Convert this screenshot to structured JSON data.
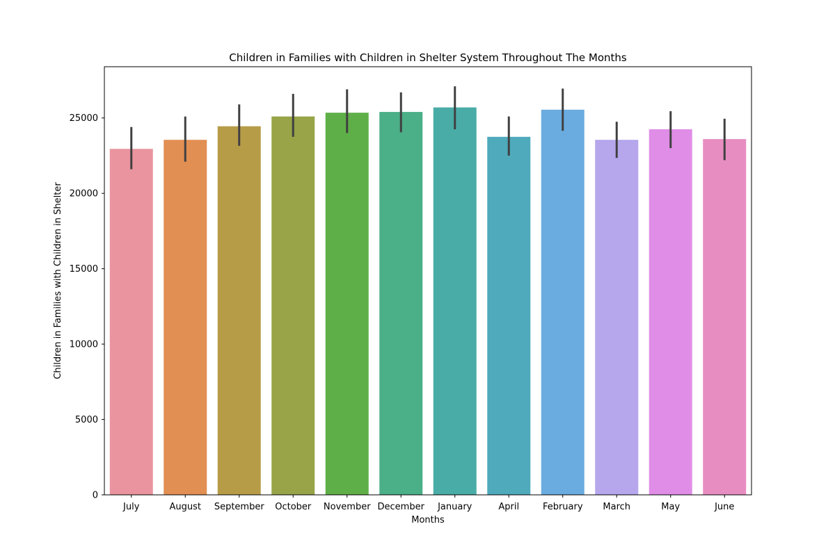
{
  "chart_data": {
    "type": "bar",
    "title": "Children in Families with Children in Shelter System Throughout The Months",
    "xlabel": "Months",
    "ylabel": "Children in Families with Children in Shelter",
    "categories": [
      "July",
      "August",
      "September",
      "October",
      "November",
      "December",
      "January",
      "April",
      "February",
      "March",
      "May",
      "June"
    ],
    "values": [
      22950,
      23550,
      24450,
      25100,
      25350,
      25400,
      25700,
      23750,
      25550,
      23550,
      24250,
      23600
    ],
    "error_low": [
      21600,
      22100,
      23150,
      23750,
      24000,
      24050,
      24250,
      22500,
      24150,
      22350,
      23000,
      22200
    ],
    "error_high": [
      24400,
      25100,
      25900,
      26600,
      26900,
      26700,
      27100,
      25100,
      26950,
      24750,
      25450,
      24950
    ],
    "colors": [
      "#E9949E",
      "#E28F53",
      "#B79C48",
      "#98A447",
      "#5FAF48",
      "#4BAF87",
      "#4AACA6",
      "#4FAABC",
      "#6AACE0",
      "#B6A6EC",
      "#E08DE8",
      "#E88DC2"
    ],
    "yticks": [
      0,
      5000,
      10000,
      15000,
      20000,
      25000
    ],
    "ylim": [
      0,
      28400
    ],
    "grid": false,
    "legend": "none"
  }
}
